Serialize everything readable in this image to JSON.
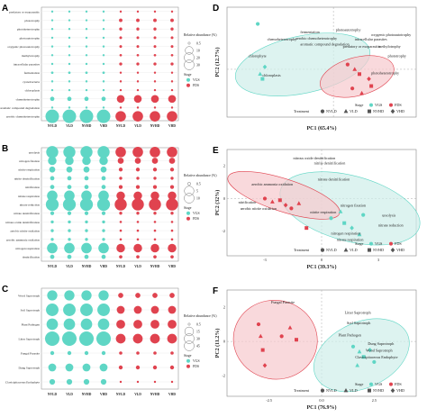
{
  "colors": {
    "vgs": "#5fd6c5",
    "fds": "#e0434f",
    "vgs_ellipse": "#cfeeea",
    "fds_ellipse": "#f6c9cd",
    "overlap": "#cfcfcf"
  },
  "bubble_panels": [
    {
      "letter": "A",
      "rows": [
        "predatory or exoparasitic",
        "phototrophy",
        "photoheterotrophy",
        "photoautotrophy",
        "oxygenic photoautotrophy",
        "methylotrophy",
        "intracellular parasites",
        "fermentation",
        "cyanobacteria",
        "chloroplasts",
        "chemoheterotrophy",
        "aromatic compound degradation",
        "aerobic chemoheterotrophy"
      ],
      "columns": [
        "NVLD",
        "VLD",
        "NVHD",
        "VHD",
        "NVLD",
        "VLD",
        "NVHD",
        "VHD"
      ],
      "legend_title": "Relative abundance (%)",
      "legend_values": [
        "0.5",
        "10",
        "20",
        "30"
      ],
      "stage_title": "Stage",
      "stage_items": [
        "VGS",
        "FDS"
      ]
    },
    {
      "letter": "B",
      "rows": [
        "ureolysis",
        "nitrogen fixation",
        "nitrite respiration",
        "nitrite denitrification",
        "nitrification",
        "nitrate respiration",
        "nitrate reduction",
        "nitrate denitrification",
        "nitrous oxide denitrification",
        "aerobic nitrite oxidation",
        "aerobic ammonia oxidation",
        "nitrogen respiration",
        "denitrification"
      ],
      "columns": [
        "NVLD",
        "VLD",
        "NVHD",
        "VHD",
        "NVLD",
        "VLD",
        "NVHD",
        "VHD"
      ],
      "legend_title": "Relative abundance (%)",
      "legend_values": [
        "0.5",
        "5",
        "10"
      ],
      "stage_title": "Stage",
      "stage_items": [
        "VGS",
        "FDS"
      ]
    },
    {
      "letter": "C",
      "rows": [
        "Wood Saprotroph",
        "Soil Saprotroph",
        "Plant Pathogen",
        "Litter Saprotroph",
        "Fungal Parasite",
        "Dung Saprotroph",
        "Clavicipitaceous Endophyte"
      ],
      "columns": [
        "NVLD",
        "VLD",
        "NVHD",
        "VHD",
        "NVLD",
        "VLD",
        "NVHD",
        "VHD"
      ],
      "legend_title": "Relative abundance (%)",
      "legend_values": [
        "0.5",
        "15",
        "30",
        "45"
      ],
      "stage_title": "Stage",
      "stage_items": [
        "VGS",
        "FDS"
      ]
    }
  ],
  "pca_panels": [
    {
      "letter": "D",
      "xlabel": "PC1  (65.4%)",
      "ylabel": "PC2  (12.7%)",
      "labels": [
        "chemoheterotrophy",
        "fermentation",
        "aerobic chemoheterotrophy",
        "aromatic compound degradation",
        "photoautotrophy",
        "oxygenic photoautotrophy",
        "intracellular parasites",
        "predatory or exoparasitic",
        "chlorophyte",
        "methylotrophy",
        "phototrophy",
        "photoheterotrophy",
        "chloroplasts"
      ]
    },
    {
      "letter": "E",
      "xlabel": "PC1  (39.3%)",
      "ylabel": "PC2  (32%)",
      "labels": [
        "nitrous oxide denitrification",
        "nitrite denitrification",
        "aerobic ammonia oxidation",
        "nitrate denitrification",
        "nitrification",
        "aerobic nitrite oxidation",
        "nitrite respiration",
        "nitrogen fixation",
        "ureolysis",
        "nitrate reduction",
        "nitrogen respiration",
        "nitrate respiration"
      ],
      "xticks": [
        "-3",
        "0",
        "3"
      ],
      "yticks": [
        "2",
        "0",
        "-2"
      ]
    },
    {
      "letter": "F",
      "xlabel": "PC1  (76.9%)",
      "ylabel": "PC2  (11.2%)",
      "labels": [
        "Fungal Parasite",
        "Litter Saprotroph",
        "Soil Saprotroph",
        "Plant Pathogen",
        "Dung Saprotroph",
        "Wood Saprotroph",
        "Clavicipitaceous Endophyte"
      ],
      "xticks": [
        "-2.5",
        "0.0",
        "2.5"
      ],
      "yticks": [
        "2",
        "0",
        "-2"
      ]
    }
  ],
  "pca_legend": {
    "stage_title": "Stage",
    "stage_items": [
      "VGS",
      "FDS"
    ],
    "treatment_title": "Treatment",
    "treatment_items": [
      "NVLD",
      "VLD",
      "NVHD",
      "VHD"
    ]
  },
  "chart_data": [
    {
      "type": "scatter",
      "kind": "bubble",
      "panel": "A",
      "rows": [
        "predatory or exoparasitic",
        "phototrophy",
        "photoheterotrophy",
        "photoautotrophy",
        "oxygenic photoautotrophy",
        "methylotrophy",
        "intracellular parasites",
        "fermentation",
        "cyanobacteria",
        "chloroplasts",
        "chemoheterotrophy",
        "aromatic compound degradation",
        "aerobic chemoheterotrophy"
      ],
      "columns": [
        "NVLD",
        "VLD",
        "NVHD",
        "VHD",
        "NVLD",
        "VLD",
        "NVHD",
        "VHD"
      ],
      "stage_by_column": [
        "VGS",
        "VGS",
        "VGS",
        "VGS",
        "FDS",
        "FDS",
        "FDS",
        "FDS"
      ],
      "values": [
        [
          0.3,
          0.3,
          0.3,
          0.3,
          0.4,
          0.4,
          0.4,
          0.4
        ],
        [
          0.6,
          0.6,
          0.6,
          0.6,
          2,
          2,
          2,
          2
        ],
        [
          0.3,
          0.3,
          0.3,
          0.3,
          1.5,
          1.5,
          1.5,
          1.5
        ],
        [
          0.5,
          0.5,
          0.5,
          0.5,
          1.2,
          1.2,
          1.2,
          1.2
        ],
        [
          0.5,
          0.5,
          0.5,
          0.5,
          1.2,
          1.2,
          1.2,
          1.2
        ],
        [
          0.3,
          0.3,
          0.3,
          0.3,
          1,
          1,
          1,
          1
        ],
        [
          0.5,
          0.5,
          0.5,
          0.5,
          1.5,
          1.5,
          1.5,
          1.5
        ],
        [
          1,
          1,
          1,
          1,
          0.5,
          0.5,
          0.5,
          0.5
        ],
        [
          0.6,
          0.6,
          0.6,
          0.6,
          0.3,
          0.3,
          0.3,
          0.3
        ],
        [
          0.6,
          0.6,
          0.6,
          0.6,
          0.3,
          0.3,
          0.3,
          0.3
        ],
        [
          3,
          3,
          3,
          3,
          10,
          10,
          10,
          10
        ],
        [
          0.8,
          0.8,
          0.8,
          0.8,
          0.3,
          0.3,
          0.3,
          0.3
        ],
        [
          30,
          30,
          30,
          30,
          18,
          18,
          18,
          18
        ]
      ]
    },
    {
      "type": "scatter",
      "kind": "bubble",
      "panel": "B",
      "rows": [
        "ureolysis",
        "nitrogen fixation",
        "nitrite respiration",
        "nitrite denitrification",
        "nitrification",
        "nitrate respiration",
        "nitrate reduction",
        "nitrate denitrification",
        "nitrous oxide denitrification",
        "aerobic nitrite oxidation",
        "aerobic ammonia oxidation",
        "nitrogen respiration",
        "denitrification"
      ],
      "columns": [
        "NVLD",
        "VLD",
        "NVHD",
        "VHD",
        "NVLD",
        "VLD",
        "NVHD",
        "VHD"
      ],
      "stage_by_column": [
        "VGS",
        "VGS",
        "VGS",
        "VGS",
        "FDS",
        "FDS",
        "FDS",
        "FDS"
      ],
      "values": [
        [
          8,
          8,
          8,
          8,
          6,
          6,
          6,
          6
        ],
        [
          4,
          4,
          4,
          4,
          2,
          2,
          2,
          2
        ],
        [
          2,
          2,
          2,
          2,
          0.8,
          0.8,
          0.8,
          0.8
        ],
        [
          1,
          1,
          1,
          1,
          0.5,
          0.5,
          0.5,
          0.5
        ],
        [
          1,
          1,
          1,
          1,
          0.8,
          0.8,
          0.8,
          0.8
        ],
        [
          6,
          6,
          6,
          6,
          4,
          4,
          4,
          4
        ],
        [
          9,
          9,
          9,
          9,
          8,
          8,
          8,
          8
        ],
        [
          0.8,
          0.8,
          0.8,
          0.8,
          0.5,
          0.5,
          0.5,
          0.5
        ],
        [
          0.5,
          0.5,
          0.5,
          0.5,
          0.3,
          0.3,
          0.3,
          0.3
        ],
        [
          0.5,
          0.5,
          0.5,
          0.5,
          0.3,
          0.3,
          0.3,
          0.3
        ],
        [
          0.5,
          0.5,
          0.5,
          0.5,
          0.3,
          0.3,
          0.3,
          0.3
        ],
        [
          6,
          6,
          6,
          6,
          4,
          4,
          4,
          4
        ],
        [
          1,
          1,
          1,
          1,
          0.6,
          0.6,
          0.6,
          0.6
        ]
      ]
    },
    {
      "type": "scatter",
      "kind": "bubble",
      "panel": "C",
      "rows": [
        "Wood Saprotroph",
        "Soil Saprotroph",
        "Plant Pathogen",
        "Litter Saprotroph",
        "Fungal Parasite",
        "Dung Saprotroph",
        "Clavicipitaceous Endophyte"
      ],
      "columns": [
        "NVLD",
        "VLD",
        "NVHD",
        "VHD",
        "NVLD",
        "VLD",
        "NVHD",
        "VHD"
      ],
      "stage_by_column": [
        "VGS",
        "VGS",
        "VGS",
        "VGS",
        "FDS",
        "FDS",
        "FDS",
        "FDS"
      ],
      "values": [
        [
          20,
          20,
          20,
          20,
          5,
          5,
          5,
          5
        ],
        [
          30,
          30,
          30,
          30,
          12,
          12,
          12,
          12
        ],
        [
          25,
          25,
          25,
          25,
          15,
          15,
          15,
          15
        ],
        [
          40,
          40,
          40,
          40,
          18,
          18,
          18,
          18
        ],
        [
          3,
          3,
          3,
          3,
          2,
          2,
          2,
          2
        ],
        [
          12,
          12,
          12,
          12,
          3,
          3,
          3,
          3
        ],
        [
          6,
          6,
          6,
          6,
          0.5,
          0.5,
          0.5,
          0.5
        ]
      ]
    },
    {
      "type": "scatter",
      "panel": "D",
      "xlabel": "PC1  (65.4%)",
      "ylabel": "PC2  (12.7%)",
      "series": [
        {
          "name": "VGS",
          "points": [
            [
              -3.2,
              1.9
            ],
            [
              -3.1,
              -0.2
            ],
            [
              -3.0,
              -0.4
            ],
            [
              -2.9,
              0.1
            ]
          ]
        },
        {
          "name": "FDS",
          "points": [
            [
              0.6,
              0.2
            ],
            [
              0.9,
              0.0
            ],
            [
              1.1,
              -0.2
            ],
            [
              1.5,
              -0.4
            ],
            [
              0.8,
              -0.8
            ],
            [
              1.2,
              -1.0
            ],
            [
              1.6,
              -0.7
            ]
          ]
        }
      ],
      "labels": [
        "chemoheterotrophy",
        "fermentation",
        "aerobic chemoheterotrophy",
        "aromatic compound degradation",
        "photoautotrophy",
        "oxygenic photoautotrophy",
        "intracellular parasites",
        "predatory or exoparasitic",
        "chlorophyte",
        "methylotrophy",
        "phototrophy",
        "photoheterotrophy",
        "chloroplasts"
      ]
    },
    {
      "type": "scatter",
      "panel": "E",
      "xlabel": "PC1  (39.3%)",
      "ylabel": "PC2  (32%)",
      "xlim": [
        -5,
        5
      ],
      "ylim": [
        -3.5,
        3
      ],
      "series": [
        {
          "name": "VGS",
          "points": [
            [
              0.5,
              -1.2
            ],
            [
              1.0,
              -0.8
            ],
            [
              1.2,
              -1.5
            ],
            [
              1.6,
              -1.8
            ],
            [
              2.2,
              -1.0
            ],
            [
              2.0,
              -2.2
            ]
          ]
        },
        {
          "name": "FDS",
          "points": [
            [
              -3.0,
              0.0
            ],
            [
              -2.6,
              -0.2
            ],
            [
              -2.2,
              -0.1
            ],
            [
              -1.9,
              -0.4
            ],
            [
              -1.6,
              -0.6
            ],
            [
              -1.2,
              -0.3
            ],
            [
              -0.8,
              -1.8
            ]
          ]
        }
      ],
      "labels": [
        "nitrous oxide denitrification",
        "nitrite denitrification",
        "aerobic ammonia oxidation",
        "nitrate denitrification",
        "nitrification",
        "aerobic nitrite oxidation",
        "nitrite respiration",
        "nitrogen fixation",
        "ureolysis",
        "nitrate reduction",
        "nitrogen respiration",
        "nitrate respiration"
      ]
    },
    {
      "type": "scatter",
      "panel": "F",
      "xlabel": "PC1  (76.9%)",
      "ylabel": "PC2  (11.2%)",
      "xlim": [
        -4.5,
        4.5
      ],
      "ylim": [
        -3.2,
        3
      ],
      "series": [
        {
          "name": "VGS",
          "points": [
            [
              1.5,
              -0.3
            ],
            [
              1.8,
              -0.6
            ],
            [
              2.0,
              -0.9
            ],
            [
              2.3,
              -0.5
            ],
            [
              2.5,
              -1.2
            ],
            [
              1.7,
              -1.4
            ]
          ]
        },
        {
          "name": "FDS",
          "points": [
            [
              -3.0,
              1.0
            ],
            [
              -2.9,
              0.3
            ],
            [
              -2.8,
              -0.5
            ],
            [
              -2.7,
              -1.4
            ],
            [
              -1.9,
              0.3
            ],
            [
              -1.5,
              0.8
            ],
            [
              -1.2,
              0.1
            ]
          ]
        }
      ],
      "labels": [
        "Fungal Parasite",
        "Litter Saprotroph",
        "Soil Saprotroph",
        "Plant Pathogen",
        "Dung Saprotroph",
        "Wood Saprotroph",
        "Clavicipitaceous Endophyte"
      ]
    }
  ]
}
